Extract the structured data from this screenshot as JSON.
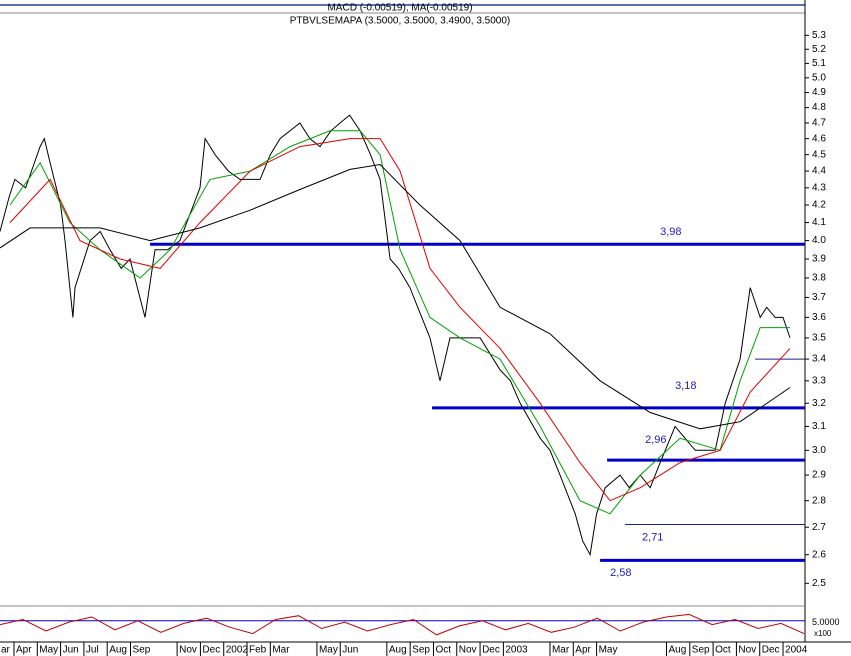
{
  "chart_data": {
    "type": "line",
    "header": [
      "MACD (-0.00519), MA(-0.00519)",
      "PTBVLSEMAPA (3.5000, 3.5000, 3.4900, 3.5000)"
    ],
    "log_y": true,
    "xlim": [
      0.4,
      34.9
    ],
    "ylim": [
      2.43,
      5.45
    ],
    "yticks": [
      2.5,
      2.6,
      2.7,
      2.8,
      2.9,
      {
        "value": 3,
        "label": "3.0"
      },
      3.1,
      3.2,
      3.3,
      3.4,
      3.5,
      3.6,
      3.7,
      3.8,
      3.9,
      {
        "value": 4,
        "label": "4.0"
      },
      4.1,
      4.2,
      4.3,
      4.4,
      4.5,
      4.6,
      4.7,
      4.8,
      4.9,
      {
        "value": 5,
        "label": "5.0"
      },
      5.1,
      5.2,
      5.3
    ],
    "xticks": [
      {
        "value": 0,
        "label": "ar"
      },
      {
        "value": 1,
        "label": "Apr"
      },
      {
        "value": 2,
        "label": "May"
      },
      {
        "value": 3,
        "label": "Jun"
      },
      {
        "value": 4,
        "label": "Jul"
      },
      {
        "value": 5,
        "label": "Aug"
      },
      {
        "value": 6,
        "label": "Sep"
      },
      {
        "value": 8,
        "label": "Nov"
      },
      {
        "value": 9,
        "label": "Dec"
      },
      {
        "value": 10,
        "label": "2002"
      },
      {
        "value": 11,
        "label": "Feb"
      },
      {
        "value": 12,
        "label": "Mar"
      },
      {
        "value": 14,
        "label": "May"
      },
      {
        "value": 15,
        "label": "Jun"
      },
      {
        "value": 17,
        "label": "Aug"
      },
      {
        "value": 18,
        "label": "Sep"
      },
      {
        "value": 19,
        "label": "Oct"
      },
      {
        "value": 20,
        "label": "Nov"
      },
      {
        "value": 21,
        "label": "Dec"
      },
      {
        "value": 22,
        "label": "2003"
      },
      {
        "value": 24,
        "label": "Mar"
      },
      {
        "value": 25,
        "label": "Apr"
      },
      {
        "value": 26,
        "label": "May"
      },
      {
        "value": 29,
        "label": "Aug"
      },
      {
        "value": 30,
        "label": "Sep"
      },
      {
        "value": 31,
        "label": "Oct"
      },
      {
        "value": 32,
        "label": "Nov"
      },
      {
        "value": 33,
        "label": "Dec"
      },
      {
        "value": 34,
        "label": "2004"
      }
    ],
    "series": [
      {
        "color": "#000000",
        "width": 1,
        "x": [
          0.4,
          0.8,
          1.04,
          1.5,
          2.12,
          2.3,
          2.55,
          3.0,
          3.19,
          3.53,
          3.62,
          4.26,
          4.7,
          5.12,
          5.6,
          5.98,
          6.62,
          7.05,
          7.6,
          8.12,
          8.98,
          9.2,
          9.63,
          10.2,
          10.7,
          11.56,
          12.0,
          12.42,
          13.27,
          13.7,
          14.13,
          14.6,
          14.99,
          15.4,
          15.85,
          16.3,
          16.71,
          17.14,
          17.5,
          17.99,
          18.5,
          18.85,
          19.28,
          19.71,
          20.3,
          21.0,
          21.86,
          22.3,
          22.72,
          23.58,
          24.0,
          24.43,
          25.08,
          25.4,
          25.72,
          26.0,
          26.37,
          27.01,
          27.4,
          27.87,
          28.3,
          28.73,
          29.37,
          29.8,
          30.23,
          30.7,
          31.09,
          31.52,
          32.16,
          32.59,
          33.02,
          33.3,
          33.66,
          34.0,
          34.3
        ],
        "values": [
          4.05,
          4.25,
          4.35,
          4.3,
          4.55,
          4.6,
          4.45,
          4.2,
          4.0,
          3.6,
          3.75,
          4.0,
          4.05,
          3.95,
          3.85,
          3.9,
          3.6,
          3.95,
          3.95,
          4.0,
          4.3,
          4.6,
          4.5,
          4.4,
          4.35,
          4.35,
          4.5,
          4.6,
          4.7,
          4.6,
          4.55,
          4.65,
          4.7,
          4.75,
          4.65,
          4.5,
          4.35,
          3.9,
          3.85,
          3.75,
          3.6,
          3.5,
          3.3,
          3.5,
          3.5,
          3.5,
          3.35,
          3.3,
          3.2,
          3.05,
          3.0,
          2.9,
          2.75,
          2.65,
          2.6,
          2.75,
          2.85,
          2.9,
          2.85,
          2.9,
          2.85,
          2.95,
          3.1,
          3.05,
          3.0,
          3.0,
          3.0,
          3.2,
          3.4,
          3.75,
          3.6,
          3.65,
          3.6,
          3.6,
          3.5
        ]
      },
      {
        "color": "#00a000",
        "width": 1,
        "x": [
          0.83,
          2.12,
          3.4,
          4.69,
          6.41,
          7.7,
          9.41,
          11.13,
          12.85,
          14.56,
          15.85,
          16.71,
          17.57,
          18.85,
          20.14,
          21.86,
          23.58,
          25.29,
          26.58,
          27.87,
          29.58,
          31.3,
          32.16,
          33.02,
          34.3
        ],
        "values": [
          4.2,
          4.45,
          4.1,
          3.95,
          3.8,
          3.95,
          4.35,
          4.4,
          4.55,
          4.65,
          4.65,
          4.5,
          3.95,
          3.6,
          3.5,
          3.4,
          3.1,
          2.8,
          2.75,
          2.9,
          3.05,
          3.0,
          3.3,
          3.55,
          3.55
        ]
      },
      {
        "color": "#e00000",
        "width": 1,
        "x": [
          0.83,
          2.55,
          3.83,
          5.55,
          7.27,
          8.98,
          11.13,
          13.27,
          15.42,
          16.71,
          17.57,
          18.85,
          20.14,
          21.86,
          23.58,
          25.29,
          26.58,
          27.87,
          29.58,
          31.3,
          32.59,
          34.3
        ],
        "values": [
          4.1,
          4.35,
          4.0,
          3.9,
          3.85,
          4.1,
          4.4,
          4.55,
          4.6,
          4.6,
          4.4,
          3.85,
          3.65,
          3.45,
          3.2,
          2.95,
          2.8,
          2.85,
          2.95,
          3.0,
          3.25,
          3.45
        ]
      },
      {
        "color": "#000000",
        "width": 1,
        "x": [
          0.4,
          1.69,
          4.69,
          6.84,
          8.98,
          11.13,
          13.27,
          15.42,
          16.71,
          18.42,
          20.14,
          21.86,
          24.0,
          26.15,
          28.3,
          30.44,
          32.16,
          34.3
        ],
        "values": [
          3.96,
          4.07,
          4.07,
          4.0,
          4.07,
          4.17,
          4.29,
          4.41,
          4.44,
          4.2,
          4.0,
          3.65,
          3.52,
          3.3,
          3.16,
          3.09,
          3.12,
          3.27
        ]
      }
    ],
    "levels": {
      "color": "#0000cc",
      "values": [
        3.98,
        3.18,
        2.96,
        2.71,
        2.58,
        3.4
      ],
      "value_labels": [
        "3,98",
        "3,18",
        "2,96",
        "2,71",
        "2,58",
        null
      ],
      "start_x": [
        6.84,
        18.94,
        26.45,
        27.22,
        26.15,
        32.8
      ],
      "heavy": [
        true,
        true,
        true,
        false,
        true,
        false
      ]
    },
    "oscillator": {
      "color": "#c00000",
      "reference_color": "#0000cc",
      "ylim": [
        -10,
        15
      ],
      "yticks": [
        {
          "value": 5,
          "label": "5.0000"
        }
      ],
      "unit_label": "x100",
      "values": [
        2,
        6,
        -3,
        4,
        8,
        -2,
        5,
        -4,
        3,
        7,
        0,
        -5,
        6,
        9,
        -1,
        4,
        -3,
        2,
        6,
        -6,
        1,
        5,
        -2,
        3,
        -4,
        0,
        7,
        -3,
        4,
        8,
        10,
        2,
        6,
        -1,
        3,
        -5
      ]
    }
  }
}
